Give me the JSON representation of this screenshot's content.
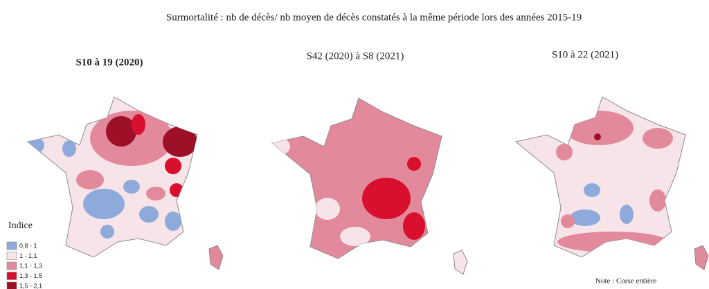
{
  "title": "Surmortalité : nb de décès/ nb moyen de décès constatés à la même période lors des années 2015-19",
  "maps": [
    {
      "title": "S10 à 19 (2020)"
    },
    {
      "title": "S42 (2020) à S8 (2021)"
    },
    {
      "title": "S10 à 22 (2021)"
    }
  ],
  "legend": {
    "title": "Indice",
    "items": [
      {
        "label": "0,8 - 1",
        "color": "#8eaadb"
      },
      {
        "label": "1 - 1,1",
        "color": "#f7e4e9"
      },
      {
        "label": "1,1 - 1,3",
        "color": "#e3899c"
      },
      {
        "label": "1,3 - 1,5",
        "color": "#d8102e"
      },
      {
        "label": "1,5 - 2,1",
        "color": "#9e0f28"
      }
    ]
  },
  "note": "Note : Corse entière"
}
